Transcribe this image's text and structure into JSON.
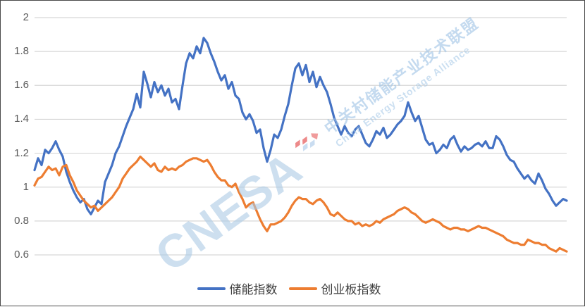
{
  "watermark": {
    "logo_text": "CNESA",
    "line_cn": "中关村储能产业技术联盟",
    "line_en": "China Energy Storage Alliance"
  },
  "chart_data": {
    "type": "line",
    "title": "",
    "xlabel": "",
    "ylabel": "",
    "x_tick_labels_visible": false,
    "ylim": [
      0.6,
      2.0
    ],
    "y_ticks": [
      "2",
      "1.8",
      "1.6",
      "1.4",
      "1.2",
      "1",
      "0.8",
      "0.6"
    ],
    "y_tick_values": [
      2,
      1.8,
      1.6,
      1.4,
      1.2,
      1,
      0.8,
      0.6
    ],
    "grid": "horizontal",
    "gridline_color": "#d6d6d6",
    "legend_position": "bottom-center",
    "series": [
      {
        "name": "储能指数",
        "color": "#4472C4",
        "values": [
          1.1,
          1.17,
          1.13,
          1.22,
          1.2,
          1.23,
          1.27,
          1.22,
          1.18,
          1.09,
          1.03,
          0.98,
          0.94,
          0.91,
          0.93,
          0.87,
          0.84,
          0.88,
          0.92,
          0.9,
          1.03,
          1.08,
          1.13,
          1.2,
          1.24,
          1.3,
          1.36,
          1.41,
          1.46,
          1.55,
          1.47,
          1.68,
          1.61,
          1.53,
          1.62,
          1.56,
          1.6,
          1.54,
          1.58,
          1.5,
          1.52,
          1.46,
          1.6,
          1.73,
          1.79,
          1.76,
          1.83,
          1.79,
          1.88,
          1.85,
          1.79,
          1.74,
          1.68,
          1.63,
          1.66,
          1.58,
          1.62,
          1.54,
          1.52,
          1.44,
          1.4,
          1.43,
          1.39,
          1.32,
          1.34,
          1.23,
          1.15,
          1.22,
          1.31,
          1.29,
          1.34,
          1.42,
          1.49,
          1.6,
          1.7,
          1.73,
          1.66,
          1.72,
          1.62,
          1.68,
          1.59,
          1.65,
          1.6,
          1.56,
          1.49,
          1.41,
          1.36,
          1.31,
          1.36,
          1.32,
          1.3,
          1.34,
          1.36,
          1.31,
          1.26,
          1.24,
          1.28,
          1.33,
          1.31,
          1.35,
          1.29,
          1.31,
          1.34,
          1.37,
          1.39,
          1.42,
          1.5,
          1.44,
          1.39,
          1.42,
          1.35,
          1.28,
          1.25,
          1.26,
          1.2,
          1.22,
          1.25,
          1.23,
          1.28,
          1.3,
          1.25,
          1.21,
          1.24,
          1.22,
          1.23,
          1.25,
          1.26,
          1.24,
          1.27,
          1.23,
          1.23,
          1.3,
          1.28,
          1.24,
          1.19,
          1.16,
          1.15,
          1.11,
          1.08,
          1.05,
          1.07,
          1.04,
          1.02,
          1.08,
          1.04,
          0.99,
          0.96,
          0.92,
          0.89,
          0.91,
          0.93,
          0.92
        ]
      },
      {
        "name": "创业板指数",
        "color": "#ED7D31",
        "values": [
          1.01,
          1.05,
          1.06,
          1.09,
          1.12,
          1.1,
          1.11,
          1.07,
          1.12,
          1.13,
          1.07,
          1.03,
          0.98,
          0.95,
          0.92,
          0.9,
          0.88,
          0.89,
          0.86,
          0.88,
          0.9,
          0.92,
          0.94,
          0.97,
          1.0,
          1.05,
          1.08,
          1.11,
          1.13,
          1.15,
          1.18,
          1.16,
          1.14,
          1.12,
          1.14,
          1.1,
          1.09,
          1.12,
          1.1,
          1.11,
          1.1,
          1.12,
          1.13,
          1.15,
          1.16,
          1.17,
          1.17,
          1.16,
          1.15,
          1.16,
          1.13,
          1.09,
          1.06,
          1.04,
          1.04,
          1.01,
          1.0,
          1.02,
          0.97,
          0.93,
          0.88,
          0.9,
          0.91,
          0.86,
          0.81,
          0.77,
          0.74,
          0.78,
          0.78,
          0.79,
          0.8,
          0.82,
          0.85,
          0.89,
          0.92,
          0.94,
          0.93,
          0.93,
          0.91,
          0.9,
          0.92,
          0.93,
          0.91,
          0.88,
          0.84,
          0.83,
          0.85,
          0.83,
          0.81,
          0.8,
          0.8,
          0.78,
          0.79,
          0.77,
          0.78,
          0.77,
          0.78,
          0.8,
          0.79,
          0.81,
          0.82,
          0.83,
          0.84,
          0.86,
          0.87,
          0.88,
          0.87,
          0.85,
          0.84,
          0.82,
          0.8,
          0.79,
          0.8,
          0.81,
          0.8,
          0.79,
          0.77,
          0.76,
          0.75,
          0.76,
          0.76,
          0.75,
          0.75,
          0.74,
          0.75,
          0.76,
          0.77,
          0.76,
          0.76,
          0.75,
          0.74,
          0.73,
          0.72,
          0.71,
          0.69,
          0.68,
          0.67,
          0.67,
          0.66,
          0.66,
          0.69,
          0.68,
          0.67,
          0.67,
          0.66,
          0.66,
          0.64,
          0.63,
          0.62,
          0.64,
          0.63,
          0.62
        ]
      }
    ]
  }
}
